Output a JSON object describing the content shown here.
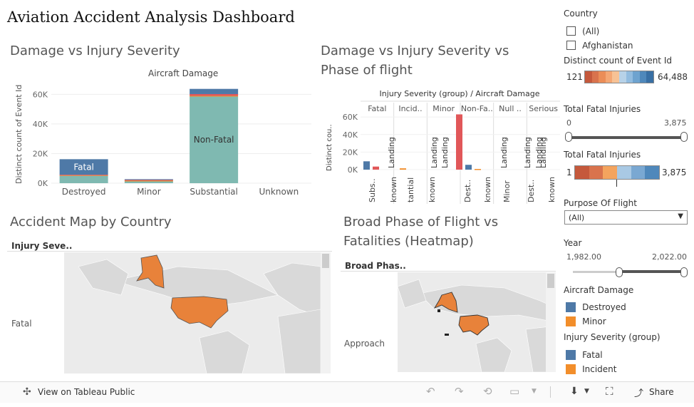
{
  "dashboard": {
    "title": "Aviation Accident Analysis Dashboard"
  },
  "sheet1": {
    "title": "Damage vs Injury Severity",
    "header": "Aircraft Damage",
    "ylabel": "Distinct count of Event Id",
    "seg_label_fatal": "Fatal",
    "seg_label_nonfatal": "Non-Fatal"
  },
  "chart_data": [
    {
      "type": "bar",
      "title": "Damage vs Injury Severity",
      "xlabel": "Aircraft Damage",
      "ylabel": "Distinct count of Event Id",
      "categories": [
        "Destroyed",
        "Minor",
        "Substantial",
        "Unknown"
      ],
      "yticks": [
        "0K",
        "20K",
        "40K",
        "60K"
      ],
      "ylim": [
        0,
        65000
      ],
      "series": [
        {
          "name": "Non-Fatal",
          "values": [
            5000,
            1200,
            58500,
            0
          ],
          "color": "#7fb9b1"
        },
        {
          "name": "Incident",
          "values": [
            400,
            700,
            500,
            0
          ],
          "color": "#f28e2b"
        },
        {
          "name": "Minor",
          "values": [
            300,
            300,
            1200,
            0
          ],
          "color": "#e15759"
        },
        {
          "name": "Fatal",
          "values": [
            10500,
            500,
            3500,
            0
          ],
          "color": "#4e79a7"
        }
      ]
    },
    {
      "type": "bar",
      "title": "Damage vs Injury Severity vs Phase of flight",
      "header": "Injury Severity (group) / Aircraft Damage",
      "ylabel": "Distinct cou..",
      "groups": [
        "Fatal",
        "Incid..",
        "Minor",
        "Non-Fa..",
        "Null ..",
        "Serious"
      ],
      "yticks": [
        "0K",
        "20K",
        "40K",
        "60K"
      ],
      "ylim": [
        0,
        65000
      ],
      "bars": [
        {
          "group": "Fatal",
          "label": "Subs..",
          "value": 9500,
          "color": "#4e79a7"
        },
        {
          "group": "Fatal",
          "label": "Subs..",
          "value": 3500,
          "color": "#e15759"
        },
        {
          "group": "Incid..",
          "label": "tantial",
          "value": 1500,
          "color": "#f28e2b"
        },
        {
          "group": "Non-Fa..",
          "label": "Dest..",
          "value": 63000,
          "color": "#e15759"
        },
        {
          "group": "Non-Fa..",
          "label": "Dest..",
          "value": 5500,
          "color": "#4e79a7"
        },
        {
          "group": "Non-Fa..",
          "label": "known",
          "value": 800,
          "color": "#f28e2b"
        }
      ],
      "phase_labels": [
        "Landing",
        "Landing",
        "Landing",
        "Landing",
        "Landing",
        "Landing",
        "Landing"
      ],
      "bottom_labels": [
        "Subs..",
        "known",
        "tantial",
        "known",
        "Dest..",
        "known",
        "Minor",
        "Dest..",
        "known"
      ]
    }
  ],
  "sheet3": {
    "title": "Accident Map by Country",
    "header": "Injury Seve..",
    "row": "Fatal"
  },
  "sheet4": {
    "title": "Broad Phase of Flight vs Fatalities (Heatmap)",
    "header": "Broad Phas..",
    "row": "Approach"
  },
  "filters": {
    "country": {
      "label": "Country",
      "options": [
        "(All)",
        "Afghanistan"
      ]
    },
    "event_count": {
      "label": "Distinct count of Event Id",
      "min": "121",
      "max": "64,488"
    },
    "fatal_slider": {
      "label": "Total Fatal Injuries",
      "min": "0",
      "max": "3,875"
    },
    "fatal_legend": {
      "label": "Total Fatal Injuries",
      "min": "1",
      "max": "3,875"
    },
    "purpose": {
      "label": "Purpose Of Flight",
      "value": "(All)"
    },
    "year": {
      "label": "Year",
      "min": "1,982.00",
      "max": "2,022.00"
    },
    "aircraft_damage": {
      "label": "Aircraft Damage",
      "items": [
        {
          "name": "Destroyed",
          "color": "#4e79a7"
        },
        {
          "name": "Minor",
          "color": "#f28e2b"
        }
      ]
    },
    "injury_group": {
      "label": "Injury Severity (group)",
      "items": [
        {
          "name": "Fatal",
          "color": "#4e79a7"
        },
        {
          "name": "Incident",
          "color": "#f28e2b"
        }
      ]
    }
  },
  "toolbar": {
    "view_label": "View on Tableau Public",
    "share_label": "Share"
  }
}
